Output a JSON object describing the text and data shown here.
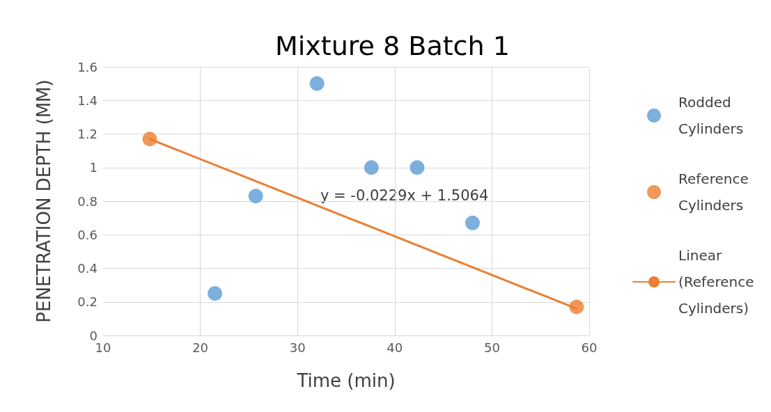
{
  "chart_data": {
    "type": "scatter",
    "title": "Mixture 8 Batch 1",
    "xlabel": "Time (min)",
    "ylabel": "PENETRATION DEPTH (MM)",
    "annotations": [
      "y = -0.0229x + 1.5064"
    ],
    "series": [
      {
        "name": "Rodded Cylinders",
        "color": "#5b9bd5",
        "marker": "circle",
        "x": [
          21.5,
          25.7,
          32.0,
          37.6,
          42.3,
          48.0
        ],
        "values": [
          0.25,
          0.83,
          1.5,
          1.0,
          1.0,
          0.67
        ]
      },
      {
        "name": "Reference Cylinders",
        "color": "#ed7d31",
        "marker": "circle",
        "x": [
          14.8,
          58.7
        ],
        "values": [
          1.17,
          0.17
        ]
      },
      {
        "name": "Linear (Reference Cylinders)",
        "type": "line",
        "color": "#ed7d31",
        "marker": "none",
        "x": [
          14.8,
          58.7
        ],
        "values": [
          1.17,
          0.16
        ]
      }
    ],
    "xlim": [
      10,
      60
    ],
    "xticks": [
      10,
      20,
      30,
      40,
      50,
      60
    ],
    "ylim": [
      0,
      1.6
    ],
    "yticks": [
      0,
      0.2,
      0.4,
      0.6,
      0.8,
      1,
      1.2,
      1.4,
      1.6
    ],
    "grid": true,
    "legend": "right",
    "line_style": "solid"
  }
}
